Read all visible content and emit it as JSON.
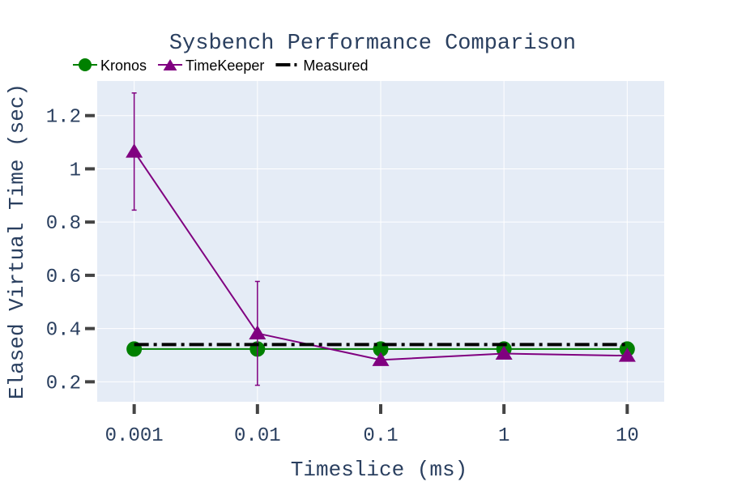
{
  "chart_data": {
    "type": "line",
    "title": "Sysbench Performance Comparison",
    "xlabel": "Timeslice (ms)",
    "ylabel": "Elased Virtual Time (sec)",
    "x_scale": "log",
    "categories": [
      "0.001",
      "0.01",
      "0.1",
      "1",
      "10"
    ],
    "x": [
      0.001,
      0.01,
      0.1,
      1,
      10
    ],
    "y_ticks": [
      "0.2",
      "0.4",
      "0.6",
      "0.8",
      "1",
      "1.2"
    ],
    "y_tick_values": [
      0.2,
      0.4,
      0.6,
      0.8,
      1.0,
      1.2
    ],
    "ylim": [
      0.125,
      1.33
    ],
    "grid": true,
    "legend_position": "top-left",
    "series": [
      {
        "name": "Kronos",
        "values": [
          0.323,
          0.323,
          0.323,
          0.323,
          0.323
        ],
        "color": "#008000",
        "marker": "circle"
      },
      {
        "name": "TimeKeeper",
        "values": [
          1.065,
          0.382,
          0.282,
          0.306,
          0.298
        ],
        "error": [
          0.22,
          0.195,
          0,
          0,
          0
        ],
        "color": "#800080",
        "marker": "triangle-up"
      },
      {
        "name": "Measured",
        "values": [
          0.34,
          0.34,
          0.34,
          0.34,
          0.34
        ],
        "color": "#000000",
        "line_style": "dashdot"
      }
    ]
  },
  "colors": {
    "plot_bg": "#e5ecf6",
    "grid": "#ffffff",
    "text": "#2a3f5f",
    "tick_mark": "#444444"
  }
}
